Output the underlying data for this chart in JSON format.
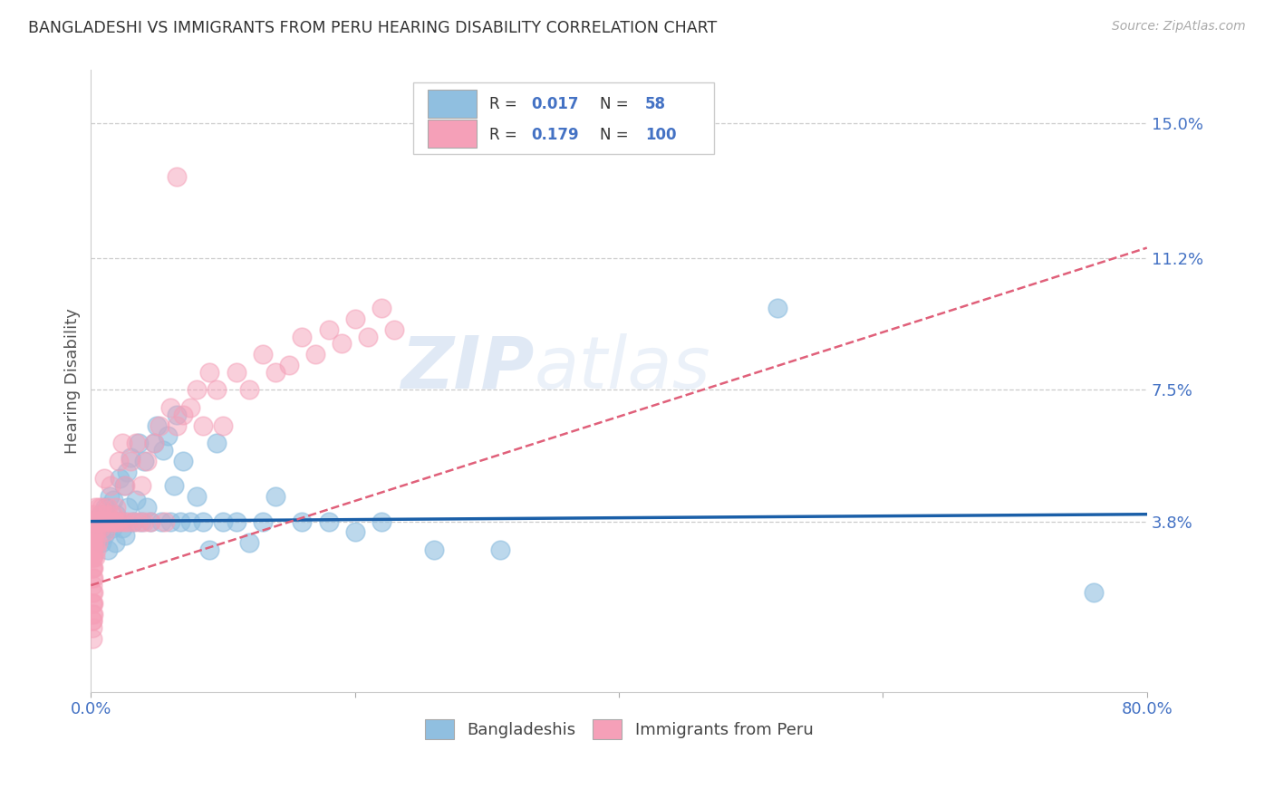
{
  "title": "BANGLADESHI VS IMMIGRANTS FROM PERU HEARING DISABILITY CORRELATION CHART",
  "source": "Source: ZipAtlas.com",
  "ylabel": "Hearing Disability",
  "xlim": [
    0.0,
    0.8
  ],
  "ylim": [
    -0.01,
    0.165
  ],
  "yticks": [
    0.038,
    0.075,
    0.112,
    0.15
  ],
  "ytick_labels": [
    "3.8%",
    "7.5%",
    "11.2%",
    "15.0%"
  ],
  "xticks": [
    0.0,
    0.2,
    0.4,
    0.6,
    0.8
  ],
  "xtick_labels": [
    "0.0%",
    "",
    "",
    "",
    "80.0%"
  ],
  "color_blue": "#90bfe0",
  "color_pink": "#f5a0b8",
  "line_blue": "#1a5fa8",
  "line_pink": "#e0607a",
  "watermark_zip": "ZIP",
  "watermark_atlas": "atlas",
  "background_color": "#ffffff",
  "grid_color": "#cccccc",
  "title_color": "#333333",
  "tick_color_right": "#4472c4",
  "legend_box_color": "#e8eef7",
  "blue_scatter_x": [
    0.003,
    0.005,
    0.007,
    0.008,
    0.009,
    0.01,
    0.011,
    0.012,
    0.013,
    0.014,
    0.015,
    0.016,
    0.017,
    0.018,
    0.019,
    0.02,
    0.022,
    0.024,
    0.025,
    0.026,
    0.027,
    0.028,
    0.03,
    0.032,
    0.034,
    0.036,
    0.038,
    0.04,
    0.042,
    0.045,
    0.048,
    0.05,
    0.053,
    0.055,
    0.058,
    0.06,
    0.063,
    0.065,
    0.068,
    0.07,
    0.075,
    0.08,
    0.085,
    0.09,
    0.095,
    0.1,
    0.11,
    0.12,
    0.13,
    0.14,
    0.16,
    0.18,
    0.2,
    0.22,
    0.26,
    0.31,
    0.52,
    0.76
  ],
  "blue_scatter_y": [
    0.035,
    0.038,
    0.04,
    0.032,
    0.036,
    0.034,
    0.042,
    0.038,
    0.03,
    0.045,
    0.038,
    0.036,
    0.044,
    0.032,
    0.04,
    0.038,
    0.05,
    0.036,
    0.048,
    0.034,
    0.052,
    0.042,
    0.056,
    0.038,
    0.044,
    0.06,
    0.038,
    0.055,
    0.042,
    0.038,
    0.06,
    0.065,
    0.038,
    0.058,
    0.062,
    0.038,
    0.048,
    0.068,
    0.038,
    0.055,
    0.038,
    0.045,
    0.038,
    0.03,
    0.06,
    0.038,
    0.038,
    0.032,
    0.038,
    0.045,
    0.038,
    0.038,
    0.035,
    0.038,
    0.03,
    0.03,
    0.098,
    0.018
  ],
  "pink_scatter_x": [
    0.001,
    0.001,
    0.001,
    0.001,
    0.001,
    0.001,
    0.001,
    0.001,
    0.001,
    0.001,
    0.001,
    0.001,
    0.001,
    0.001,
    0.001,
    0.001,
    0.001,
    0.001,
    0.001,
    0.001,
    0.002,
    0.002,
    0.002,
    0.002,
    0.002,
    0.002,
    0.002,
    0.002,
    0.002,
    0.002,
    0.003,
    0.003,
    0.003,
    0.003,
    0.003,
    0.004,
    0.004,
    0.004,
    0.005,
    0.005,
    0.006,
    0.006,
    0.007,
    0.007,
    0.008,
    0.008,
    0.009,
    0.01,
    0.01,
    0.011,
    0.012,
    0.012,
    0.013,
    0.014,
    0.015,
    0.016,
    0.017,
    0.018,
    0.019,
    0.02,
    0.021,
    0.022,
    0.024,
    0.025,
    0.026,
    0.028,
    0.03,
    0.032,
    0.034,
    0.036,
    0.038,
    0.04,
    0.042,
    0.045,
    0.048,
    0.052,
    0.056,
    0.06,
    0.065,
    0.07,
    0.075,
    0.08,
    0.085,
    0.09,
    0.095,
    0.1,
    0.11,
    0.12,
    0.13,
    0.14,
    0.15,
    0.16,
    0.17,
    0.18,
    0.19,
    0.2,
    0.21,
    0.22,
    0.23,
    0.065
  ],
  "pink_scatter_y": [
    0.028,
    0.03,
    0.032,
    0.025,
    0.022,
    0.018,
    0.015,
    0.012,
    0.01,
    0.008,
    0.035,
    0.03,
    0.025,
    0.038,
    0.02,
    0.015,
    0.01,
    0.005,
    0.032,
    0.028,
    0.038,
    0.035,
    0.032,
    0.028,
    0.025,
    0.022,
    0.018,
    0.015,
    0.012,
    0.04,
    0.038,
    0.035,
    0.032,
    0.028,
    0.042,
    0.038,
    0.035,
    0.03,
    0.038,
    0.032,
    0.042,
    0.038,
    0.04,
    0.036,
    0.038,
    0.042,
    0.038,
    0.05,
    0.038,
    0.035,
    0.04,
    0.038,
    0.042,
    0.038,
    0.048,
    0.038,
    0.04,
    0.038,
    0.042,
    0.038,
    0.055,
    0.038,
    0.06,
    0.038,
    0.048,
    0.038,
    0.055,
    0.038,
    0.06,
    0.038,
    0.048,
    0.038,
    0.055,
    0.038,
    0.06,
    0.065,
    0.038,
    0.07,
    0.065,
    0.068,
    0.07,
    0.075,
    0.065,
    0.08,
    0.075,
    0.065,
    0.08,
    0.075,
    0.085,
    0.08,
    0.082,
    0.09,
    0.085,
    0.092,
    0.088,
    0.095,
    0.09,
    0.098,
    0.092,
    0.135
  ]
}
